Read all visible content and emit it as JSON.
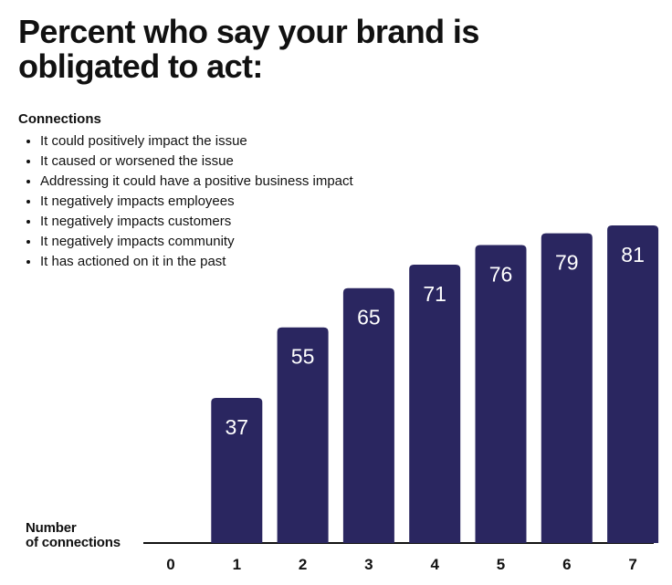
{
  "title": "Percent who say your brand is obligated to act:",
  "legend": {
    "heading": "Connections",
    "items": [
      "It could positively impact the issue",
      "It caused or worsened the issue",
      "Addressing it could have a positive business impact",
      "It negatively impacts employees",
      "It negatively impacts customers",
      "It negatively impacts community",
      "It has actioned on it in the past"
    ]
  },
  "chart_data": {
    "type": "bar",
    "title": "Percent who say your brand is obligated to act:",
    "xlabel": "Number of connections",
    "ylabel": "",
    "categories": [
      "0",
      "1",
      "2",
      "3",
      "4",
      "5",
      "6",
      "7"
    ],
    "values": [
      null,
      37,
      55,
      65,
      71,
      76,
      79,
      81
    ],
    "ylim": [
      0,
      81
    ],
    "grid": false,
    "bar_color": "#2a2660",
    "label_color": "#ffffff"
  }
}
